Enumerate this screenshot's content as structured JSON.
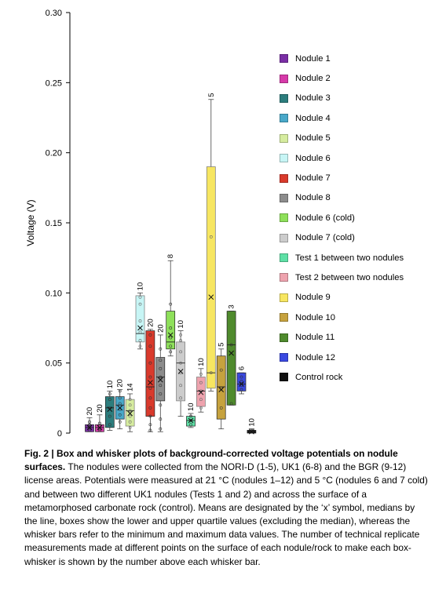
{
  "chart_data": {
    "type": "box",
    "ylabel": "Voltage (V)",
    "ylim": [
      0,
      0.3
    ],
    "yticks": [
      0,
      0.05,
      0.1,
      0.15,
      0.2,
      0.25,
      0.3
    ],
    "ytick_labels": [
      "0",
      "0.05",
      "0.10",
      "0.15",
      "0.20",
      "0.25",
      "0.30"
    ],
    "series": [
      {
        "name": "Nodule 1",
        "color": "#7a2ea5",
        "n": "20",
        "min": 0.001,
        "q1": 0.001,
        "median": 0.004,
        "q3": 0.006,
        "max": 0.011,
        "mean": 0.004,
        "points": [
          0.002,
          0.004,
          0.006,
          0.008
        ]
      },
      {
        "name": "Nodule 2",
        "color": "#d63aa9",
        "n": "20",
        "min": 0.001,
        "q1": 0.001,
        "median": 0.004,
        "q3": 0.006,
        "max": 0.013,
        "mean": 0.004,
        "points": [
          0.002,
          0.003,
          0.005,
          0.007
        ]
      },
      {
        "name": "Nodule 3",
        "color": "#2c7d7d",
        "n": "10",
        "min": 0.002,
        "q1": 0.004,
        "median": 0.018,
        "q3": 0.026,
        "max": 0.03,
        "mean": 0.017,
        "points": [
          0.006,
          0.012,
          0.018,
          0.024,
          0.028
        ]
      },
      {
        "name": "Nodule 4",
        "color": "#49a8c9",
        "n": "20",
        "min": 0.003,
        "q1": 0.01,
        "median": 0.02,
        "q3": 0.026,
        "max": 0.031,
        "mean": 0.018,
        "points": [
          0.008,
          0.013,
          0.017,
          0.021,
          0.025,
          0.03
        ]
      },
      {
        "name": "Nodule 5",
        "color": "#d6ec9f",
        "n": "14",
        "min": 0.001,
        "q1": 0.005,
        "median": 0.016,
        "q3": 0.024,
        "max": 0.028,
        "mean": 0.014,
        "points": [
          0.004,
          0.008,
          0.012,
          0.016,
          0.02,
          0.024
        ]
      },
      {
        "name": "Nodule 6",
        "color": "#c7f5f5",
        "n": "10",
        "min": 0.06,
        "q1": 0.065,
        "median": 0.071,
        "q3": 0.098,
        "max": 0.1,
        "mean": 0.075,
        "points": [
          0.062,
          0.066,
          0.072,
          0.08,
          0.092,
          0.097
        ]
      },
      {
        "name": "Nodule 7",
        "color": "#d93a2c",
        "n": "20",
        "min": 0.001,
        "q1": 0.012,
        "median": 0.033,
        "q3": 0.073,
        "max": 0.074,
        "mean": 0.036,
        "points": [
          0.002,
          0.006,
          0.012,
          0.018,
          0.025,
          0.032,
          0.04,
          0.05,
          0.062,
          0.07
        ]
      },
      {
        "name": "Nodule 8",
        "color": "#8c8c8c",
        "n": "20",
        "min": 0.001,
        "q1": 0.023,
        "median": 0.04,
        "q3": 0.054,
        "max": 0.07,
        "mean": 0.038,
        "points": [
          0.003,
          0.01,
          0.02,
          0.028,
          0.034,
          0.04,
          0.046,
          0.052,
          0.06
        ]
      },
      {
        "name": "Nodule 6 (cold)",
        "color": "#8ee05a",
        "n": "8",
        "min": 0.055,
        "q1": 0.06,
        "median": 0.065,
        "q3": 0.087,
        "max": 0.123,
        "mean": 0.07,
        "points": [
          0.058,
          0.062,
          0.068,
          0.075,
          0.092
        ]
      },
      {
        "name": "Nodule 7 (cold)",
        "color": "#cccccc",
        "n": "10",
        "min": 0.012,
        "q1": 0.023,
        "median": 0.05,
        "q3": 0.065,
        "max": 0.073,
        "mean": 0.044,
        "points": [
          0.025,
          0.034,
          0.043,
          0.05,
          0.058,
          0.066,
          0.07
        ]
      },
      {
        "name": "Test 1 between two nodules",
        "color": "#5ee0a6",
        "n": "10",
        "min": 0.004,
        "q1": 0.005,
        "median": 0.009,
        "q3": 0.012,
        "max": 0.014,
        "mean": 0.009,
        "points": [
          0.006,
          0.009,
          0.012
        ]
      },
      {
        "name": "Test 2 between two nodules",
        "color": "#eea3ae",
        "n": "10",
        "min": 0.015,
        "q1": 0.019,
        "median": 0.03,
        "q3": 0.04,
        "max": 0.046,
        "mean": 0.029,
        "points": [
          0.018,
          0.024,
          0.03,
          0.036,
          0.042
        ]
      },
      {
        "name": "Nodule 9",
        "color": "#f7e661",
        "n": "5",
        "min": 0.03,
        "q1": 0.032,
        "median": 0.043,
        "q3": 0.19,
        "max": 0.238,
        "mean": 0.097,
        "points": [
          0.043,
          0.14
        ]
      },
      {
        "name": "Nodule 10",
        "color": "#c6a23e",
        "n": "5",
        "min": 0.003,
        "q1": 0.01,
        "median": 0.033,
        "q3": 0.055,
        "max": 0.06,
        "mean": 0.031,
        "points": [
          0.018,
          0.032,
          0.045
        ]
      },
      {
        "name": "Nodule 11",
        "color": "#4f8a2d",
        "n": "3",
        "min": 0.02,
        "q1": 0.02,
        "median": 0.063,
        "q3": 0.087,
        "max": 0.087,
        "mean": 0.057,
        "points": [
          0.021,
          0.063
        ]
      },
      {
        "name": "Nodule 12",
        "color": "#3a49e0",
        "n": "6",
        "min": 0.028,
        "q1": 0.03,
        "median": 0.035,
        "q3": 0.043,
        "max": 0.043,
        "mean": 0.035,
        "points": [
          0.031,
          0.034,
          0.037,
          0.04
        ]
      },
      {
        "name": "Control rock",
        "color": "#111111",
        "n": "10",
        "min": 0.0,
        "q1": 0.0,
        "median": 0.001,
        "q3": 0.002,
        "max": 0.003,
        "mean": 0.001,
        "points": [
          0.001,
          0.002
        ]
      }
    ]
  },
  "caption": {
    "title": "Fig. 2 | Box and whisker plots of background-corrected voltage potentials on nodule surfaces.",
    "body": "The nodules were collected from the NORI-D (1-5), UK1 (6-8) and the BGR (9-12) license areas. Potentials were measured at 21 °C (nodules 1–12) and 5 °C (nodules 6 and 7 cold) and between two different UK1 nodules (Tests 1 and 2) and across the surface of a metamorphosed carbonate rock (control). Means are designated by the ‘x’ symbol, medians by the line, boxes show the lower and upper quartile values (excluding the median), whereas the whisker bars refer to the minimum and maximum data values. The number of technical replicate measurements made at different points on the surface of each nodule/rock to make each box-whisker is shown by the number above each whisker bar."
  }
}
